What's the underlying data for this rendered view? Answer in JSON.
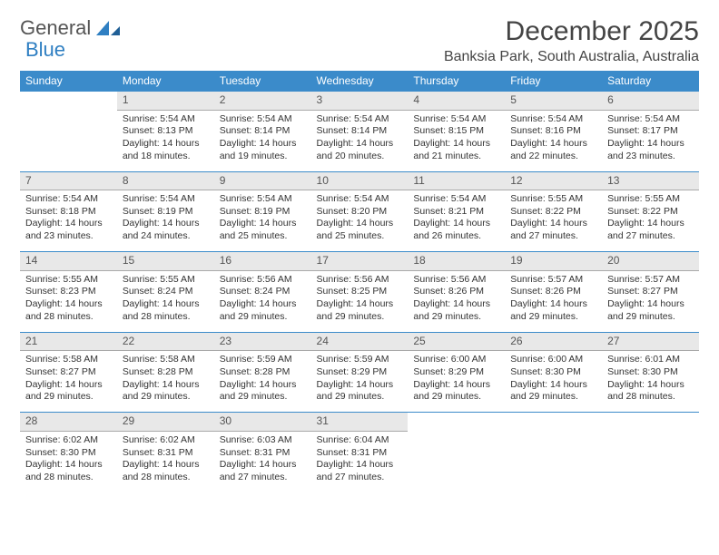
{
  "logo": {
    "word1": "General",
    "word2": "Blue"
  },
  "title": "December 2025",
  "location": "Banksia Park, South Australia, Australia",
  "colors": {
    "header_bg": "#3b8bca",
    "header_text": "#ffffff",
    "daynum_bg": "#e8e8e8",
    "border_top": "#3b8bca",
    "border_bottom": "#a9a9a9",
    "text": "#333333",
    "logo_gray": "#555555",
    "logo_blue": "#2f7fc2"
  },
  "day_headers": [
    "Sunday",
    "Monday",
    "Tuesday",
    "Wednesday",
    "Thursday",
    "Friday",
    "Saturday"
  ],
  "weeks": [
    {
      "nums": [
        "",
        "1",
        "2",
        "3",
        "4",
        "5",
        "6"
      ],
      "cells": [
        null,
        {
          "sunrise": "Sunrise: 5:54 AM",
          "sunset": "Sunset: 8:13 PM",
          "day1": "Daylight: 14 hours",
          "day2": "and 18 minutes."
        },
        {
          "sunrise": "Sunrise: 5:54 AM",
          "sunset": "Sunset: 8:14 PM",
          "day1": "Daylight: 14 hours",
          "day2": "and 19 minutes."
        },
        {
          "sunrise": "Sunrise: 5:54 AM",
          "sunset": "Sunset: 8:14 PM",
          "day1": "Daylight: 14 hours",
          "day2": "and 20 minutes."
        },
        {
          "sunrise": "Sunrise: 5:54 AM",
          "sunset": "Sunset: 8:15 PM",
          "day1": "Daylight: 14 hours",
          "day2": "and 21 minutes."
        },
        {
          "sunrise": "Sunrise: 5:54 AM",
          "sunset": "Sunset: 8:16 PM",
          "day1": "Daylight: 14 hours",
          "day2": "and 22 minutes."
        },
        {
          "sunrise": "Sunrise: 5:54 AM",
          "sunset": "Sunset: 8:17 PM",
          "day1": "Daylight: 14 hours",
          "day2": "and 23 minutes."
        }
      ]
    },
    {
      "nums": [
        "7",
        "8",
        "9",
        "10",
        "11",
        "12",
        "13"
      ],
      "cells": [
        {
          "sunrise": "Sunrise: 5:54 AM",
          "sunset": "Sunset: 8:18 PM",
          "day1": "Daylight: 14 hours",
          "day2": "and 23 minutes."
        },
        {
          "sunrise": "Sunrise: 5:54 AM",
          "sunset": "Sunset: 8:19 PM",
          "day1": "Daylight: 14 hours",
          "day2": "and 24 minutes."
        },
        {
          "sunrise": "Sunrise: 5:54 AM",
          "sunset": "Sunset: 8:19 PM",
          "day1": "Daylight: 14 hours",
          "day2": "and 25 minutes."
        },
        {
          "sunrise": "Sunrise: 5:54 AM",
          "sunset": "Sunset: 8:20 PM",
          "day1": "Daylight: 14 hours",
          "day2": "and 25 minutes."
        },
        {
          "sunrise": "Sunrise: 5:54 AM",
          "sunset": "Sunset: 8:21 PM",
          "day1": "Daylight: 14 hours",
          "day2": "and 26 minutes."
        },
        {
          "sunrise": "Sunrise: 5:55 AM",
          "sunset": "Sunset: 8:22 PM",
          "day1": "Daylight: 14 hours",
          "day2": "and 27 minutes."
        },
        {
          "sunrise": "Sunrise: 5:55 AM",
          "sunset": "Sunset: 8:22 PM",
          "day1": "Daylight: 14 hours",
          "day2": "and 27 minutes."
        }
      ]
    },
    {
      "nums": [
        "14",
        "15",
        "16",
        "17",
        "18",
        "19",
        "20"
      ],
      "cells": [
        {
          "sunrise": "Sunrise: 5:55 AM",
          "sunset": "Sunset: 8:23 PM",
          "day1": "Daylight: 14 hours",
          "day2": "and 28 minutes."
        },
        {
          "sunrise": "Sunrise: 5:55 AM",
          "sunset": "Sunset: 8:24 PM",
          "day1": "Daylight: 14 hours",
          "day2": "and 28 minutes."
        },
        {
          "sunrise": "Sunrise: 5:56 AM",
          "sunset": "Sunset: 8:24 PM",
          "day1": "Daylight: 14 hours",
          "day2": "and 29 minutes."
        },
        {
          "sunrise": "Sunrise: 5:56 AM",
          "sunset": "Sunset: 8:25 PM",
          "day1": "Daylight: 14 hours",
          "day2": "and 29 minutes."
        },
        {
          "sunrise": "Sunrise: 5:56 AM",
          "sunset": "Sunset: 8:26 PM",
          "day1": "Daylight: 14 hours",
          "day2": "and 29 minutes."
        },
        {
          "sunrise": "Sunrise: 5:57 AM",
          "sunset": "Sunset: 8:26 PM",
          "day1": "Daylight: 14 hours",
          "day2": "and 29 minutes."
        },
        {
          "sunrise": "Sunrise: 5:57 AM",
          "sunset": "Sunset: 8:27 PM",
          "day1": "Daylight: 14 hours",
          "day2": "and 29 minutes."
        }
      ]
    },
    {
      "nums": [
        "21",
        "22",
        "23",
        "24",
        "25",
        "26",
        "27"
      ],
      "cells": [
        {
          "sunrise": "Sunrise: 5:58 AM",
          "sunset": "Sunset: 8:27 PM",
          "day1": "Daylight: 14 hours",
          "day2": "and 29 minutes."
        },
        {
          "sunrise": "Sunrise: 5:58 AM",
          "sunset": "Sunset: 8:28 PM",
          "day1": "Daylight: 14 hours",
          "day2": "and 29 minutes."
        },
        {
          "sunrise": "Sunrise: 5:59 AM",
          "sunset": "Sunset: 8:28 PM",
          "day1": "Daylight: 14 hours",
          "day2": "and 29 minutes."
        },
        {
          "sunrise": "Sunrise: 5:59 AM",
          "sunset": "Sunset: 8:29 PM",
          "day1": "Daylight: 14 hours",
          "day2": "and 29 minutes."
        },
        {
          "sunrise": "Sunrise: 6:00 AM",
          "sunset": "Sunset: 8:29 PM",
          "day1": "Daylight: 14 hours",
          "day2": "and 29 minutes."
        },
        {
          "sunrise": "Sunrise: 6:00 AM",
          "sunset": "Sunset: 8:30 PM",
          "day1": "Daylight: 14 hours",
          "day2": "and 29 minutes."
        },
        {
          "sunrise": "Sunrise: 6:01 AM",
          "sunset": "Sunset: 8:30 PM",
          "day1": "Daylight: 14 hours",
          "day2": "and 28 minutes."
        }
      ]
    },
    {
      "nums": [
        "28",
        "29",
        "30",
        "31",
        "",
        "",
        ""
      ],
      "cells": [
        {
          "sunrise": "Sunrise: 6:02 AM",
          "sunset": "Sunset: 8:30 PM",
          "day1": "Daylight: 14 hours",
          "day2": "and 28 minutes."
        },
        {
          "sunrise": "Sunrise: 6:02 AM",
          "sunset": "Sunset: 8:31 PM",
          "day1": "Daylight: 14 hours",
          "day2": "and 28 minutes."
        },
        {
          "sunrise": "Sunrise: 6:03 AM",
          "sunset": "Sunset: 8:31 PM",
          "day1": "Daylight: 14 hours",
          "day2": "and 27 minutes."
        },
        {
          "sunrise": "Sunrise: 6:04 AM",
          "sunset": "Sunset: 8:31 PM",
          "day1": "Daylight: 14 hours",
          "day2": "and 27 minutes."
        },
        null,
        null,
        null
      ]
    }
  ]
}
